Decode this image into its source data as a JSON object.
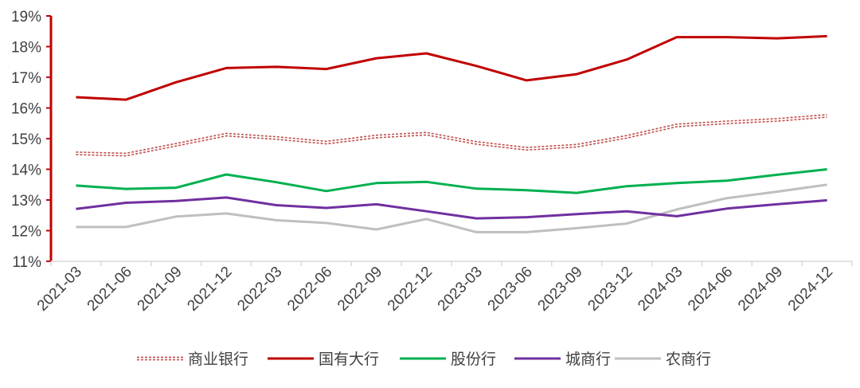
{
  "chart_data": {
    "type": "line",
    "title": "",
    "xlabel": "",
    "ylabel": "",
    "x": [
      "2021-03",
      "2021-06",
      "2021-09",
      "2021-12",
      "2022-03",
      "2022-06",
      "2022-09",
      "2022-12",
      "2023-03",
      "2023-06",
      "2023-09",
      "2023-12",
      "2024-03",
      "2024-06",
      "2024-09",
      "2024-12"
    ],
    "y_ticks": [
      "11%",
      "12%",
      "13%",
      "14%",
      "15%",
      "16%",
      "17%",
      "18%",
      "19%"
    ],
    "ylim": [
      11,
      19
    ],
    "grid": false,
    "legend_position": "bottom",
    "series": [
      {
        "name": "商业银行",
        "color": "#C0504D",
        "style": "dotted-double",
        "values": [
          14.52,
          14.48,
          14.8,
          15.13,
          15.02,
          14.87,
          15.07,
          15.16,
          14.86,
          14.67,
          14.77,
          15.06,
          15.43,
          15.53,
          15.61,
          15.74
        ]
      },
      {
        "name": "国有大行",
        "color": "#C00000",
        "style": "solid",
        "values": [
          16.35,
          16.27,
          16.84,
          17.3,
          17.34,
          17.27,
          17.62,
          17.78,
          17.37,
          16.9,
          17.1,
          17.58,
          18.31,
          18.31,
          18.27,
          18.34
        ]
      },
      {
        "name": "股份行",
        "color": "#00B050",
        "style": "solid",
        "values": [
          13.47,
          13.36,
          13.4,
          13.83,
          13.58,
          13.29,
          13.55,
          13.59,
          13.37,
          13.32,
          13.23,
          13.45,
          13.55,
          13.63,
          13.82,
          14.0
        ]
      },
      {
        "name": "城商行",
        "color": "#7030A0",
        "style": "solid",
        "values": [
          12.71,
          12.91,
          12.97,
          13.08,
          12.83,
          12.74,
          12.86,
          12.63,
          12.4,
          12.44,
          12.54,
          12.63,
          12.47,
          12.72,
          12.86,
          12.99
        ]
      },
      {
        "name": "农商行",
        "color": "#BFBFBF",
        "style": "solid",
        "values": [
          12.12,
          12.12,
          12.46,
          12.56,
          12.34,
          12.25,
          12.04,
          12.38,
          11.95,
          11.95,
          12.08,
          12.23,
          12.69,
          13.06,
          13.27,
          13.5
        ]
      }
    ]
  }
}
